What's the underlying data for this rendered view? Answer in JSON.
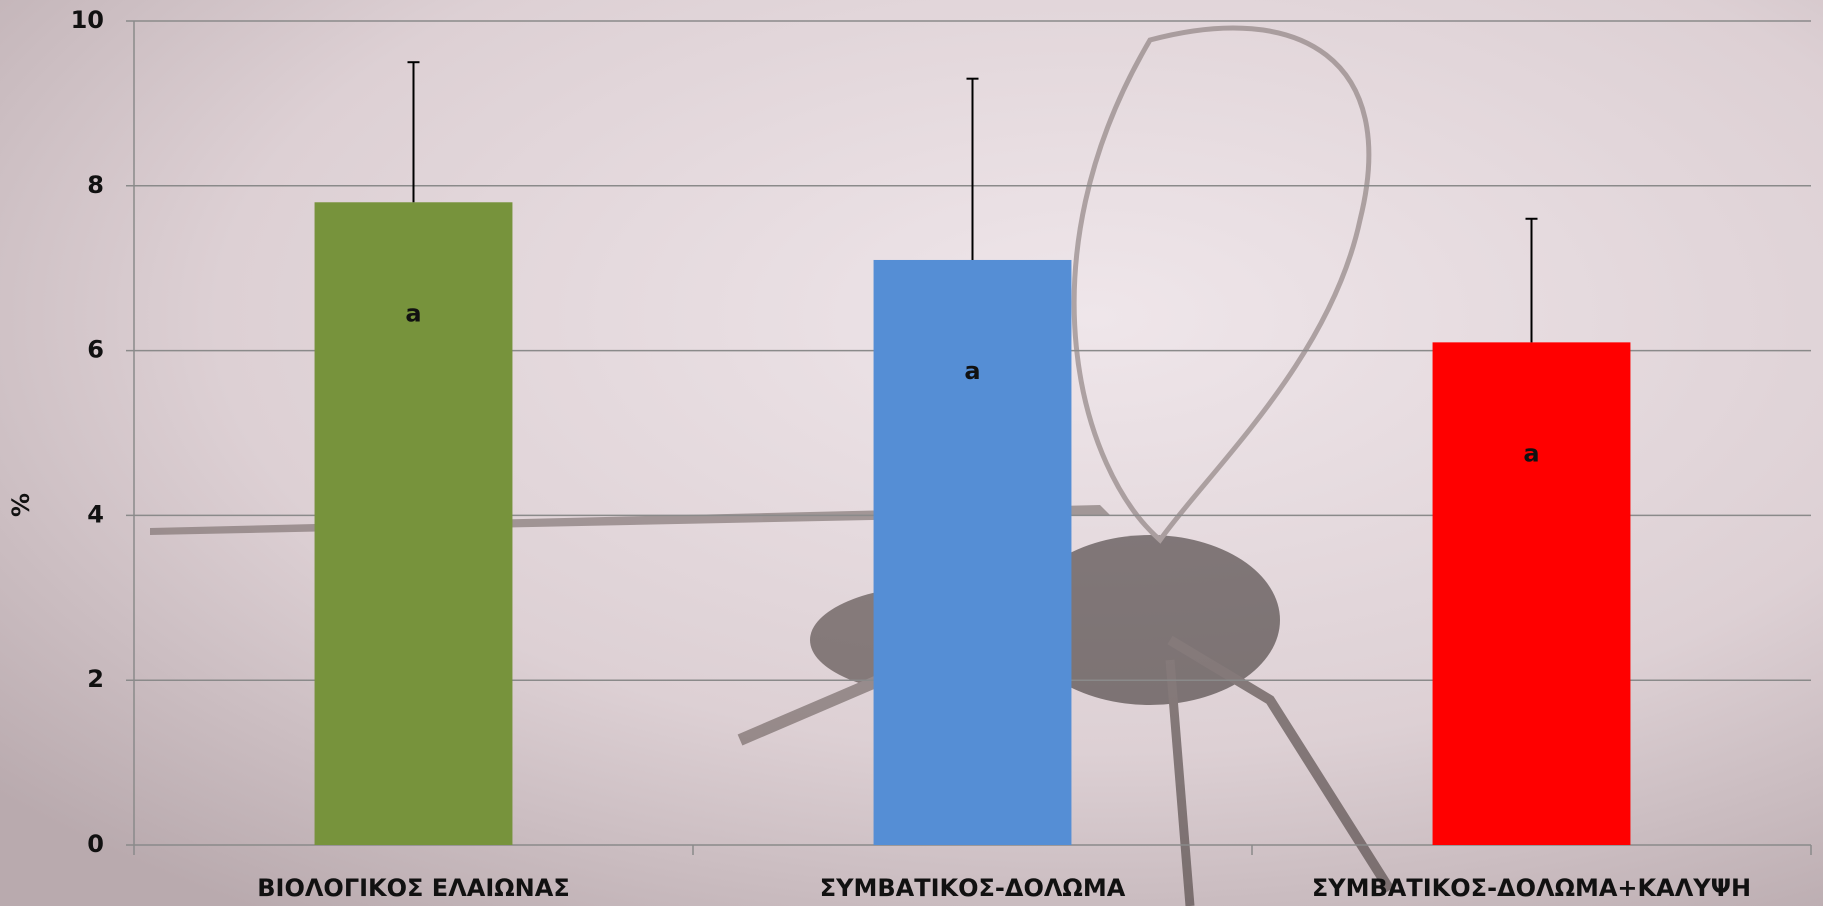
{
  "chart_data": {
    "type": "bar",
    "y_label": "%",
    "categories": [
      "ΒΙΟΛΟΓΙΚΟΣ ΕΛΑΙΩΝΑΣ",
      "ΣΥΜΒΑΤΙΚΟΣ-ΔΟΛΩΜΑ",
      "ΣΥΜΒΑΤΙΚΟΣ-ΔΟΛΩΜΑ+ΚΑΛΥΨΗ"
    ],
    "values": [
      7.8,
      7.1,
      6.1
    ],
    "errors": [
      1.7,
      2.2,
      1.5
    ],
    "colors": [
      "#77933c",
      "#558ed5",
      "#ff0000"
    ],
    "annotations": [
      "a",
      "a",
      "a"
    ],
    "ylim": [
      0,
      10
    ],
    "yticks": [
      0,
      2,
      4,
      6,
      8,
      10
    ],
    "grid": true
  }
}
